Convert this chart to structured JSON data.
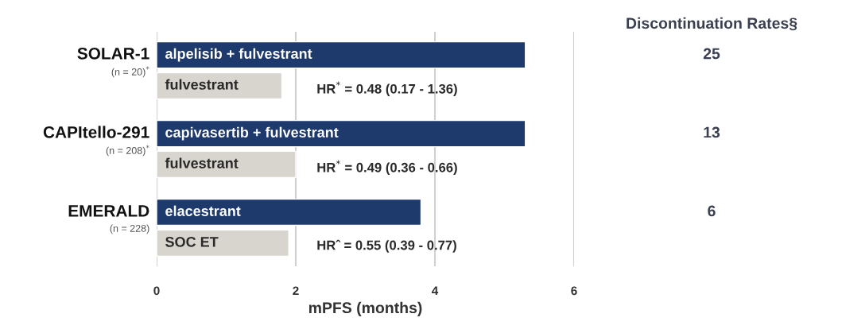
{
  "chart_data": [
    {
      "type": "bar",
      "orientation": "horizontal",
      "xlabel": "mPFS (months)",
      "categories": [
        "alpelisib + fulvestrant",
        "fulvestrant",
        "capivasertib + fulvestrant",
        "fulvestrant",
        "elacestrant",
        "SOC ET"
      ],
      "values": [
        5.3,
        1.8,
        5.3,
        2.0,
        3.8,
        1.9
      ],
      "colors": [
        "#1e3a6d",
        "#d8d5ce",
        "#1e3a6d",
        "#d8d5ce",
        "#1e3a6d",
        "#d8d5ce"
      ],
      "xlim": [
        0,
        6
      ],
      "xticks": [
        0,
        2,
        4,
        6
      ],
      "grid": "x",
      "annotations": [
        "SOLAR-1",
        "(n = 20)$^{*}$",
        "CAPItello-291",
        "(n = 208)$^{*}$",
        "EMERALD",
        "(n = 228)",
        "HR$^{*}$ = 0.48 (0.17 - 1.36)",
        "HR$^{*}$ = 0.49 (0.36 - 0.66)",
        "HRˆ = 0.55 (0.39 - 0.77)"
      ]
    },
    {
      "type": "other",
      "title": "Discontinuation Rates§",
      "categories": [
        null,
        null,
        null
      ],
      "values": [
        25,
        13,
        6
      ],
      "data_labels": true
    }
  ]
}
